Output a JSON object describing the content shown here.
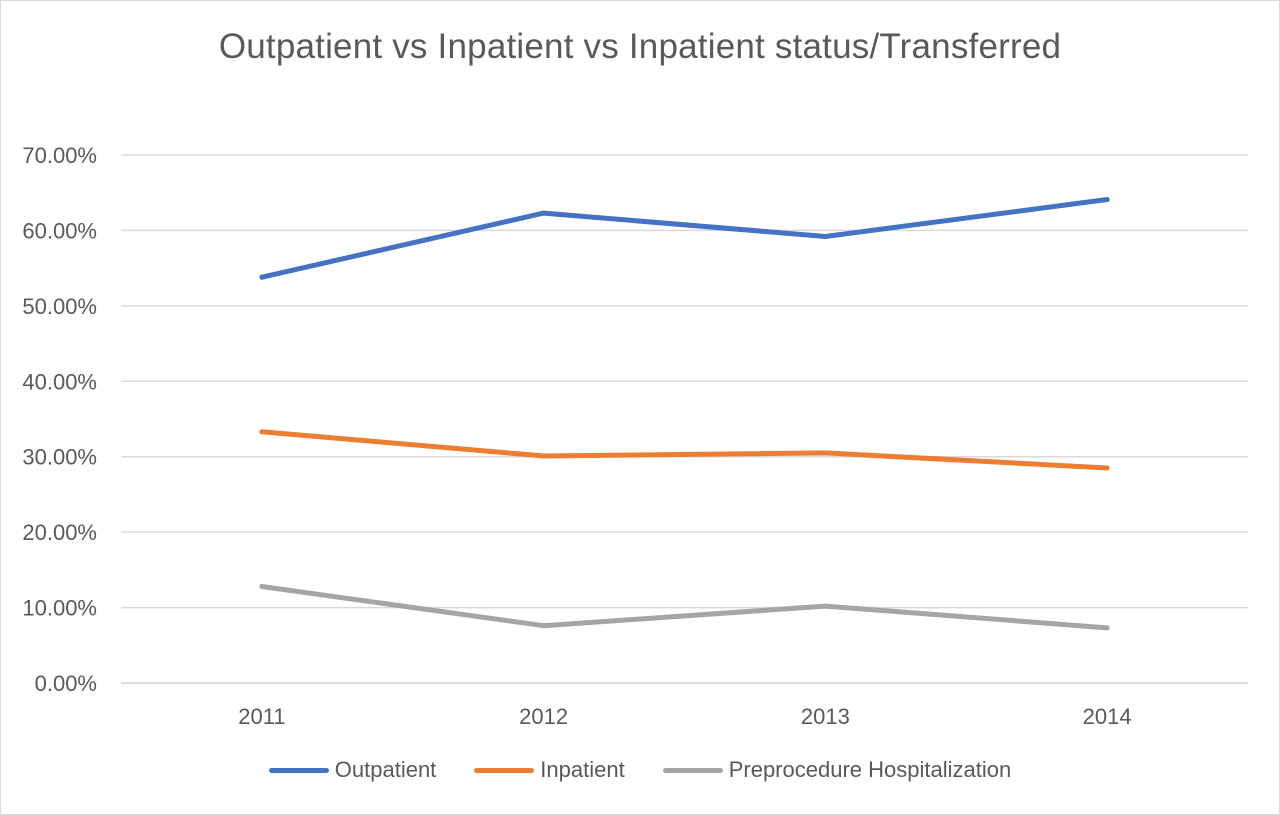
{
  "chart_data": {
    "type": "line",
    "title": "Outpatient vs Inpatient vs Inpatient status/Transferred",
    "xlabel": "",
    "ylabel": "",
    "categories": [
      "2011",
      "2012",
      "2013",
      "2014"
    ],
    "ylim": [
      0,
      0.7
    ],
    "yticks": [
      0,
      0.1,
      0.2,
      0.3,
      0.4,
      0.5,
      0.6,
      0.7
    ],
    "ytick_labels": [
      "0.00%",
      "10.00%",
      "20.00%",
      "30.00%",
      "40.00%",
      "50.00%",
      "60.00%",
      "70.00%"
    ],
    "grid": true,
    "legend_position": "bottom",
    "series": [
      {
        "name": "Outpatient",
        "values": [
          0.538,
          0.623,
          0.592,
          0.641
        ],
        "color": "#4472C4"
      },
      {
        "name": "Inpatient",
        "values": [
          0.333,
          0.301,
          0.305,
          0.285
        ],
        "color": "#ED7D31"
      },
      {
        "name": "Preprocedure Hospitalization",
        "values": [
          0.128,
          0.076,
          0.102,
          0.073
        ],
        "color": "#A5A5A5"
      }
    ]
  }
}
